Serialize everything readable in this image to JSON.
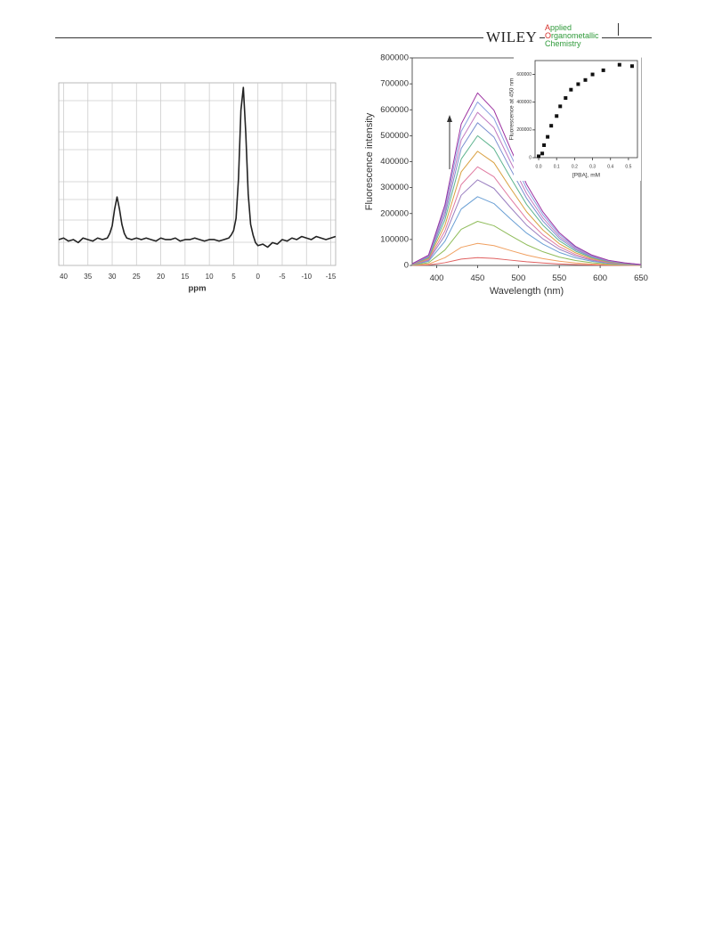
{
  "header": {
    "publisher": "WILEY",
    "journal": [
      "Applied",
      "Organometallic",
      "Chemistry"
    ]
  },
  "chart_data": [
    {
      "type": "line",
      "xlabel": "ppm",
      "color": "#222",
      "grid": true,
      "xlim": [
        41,
        -16
      ],
      "xticks": [
        40,
        35,
        30,
        25,
        20,
        15,
        10,
        5,
        0,
        -5,
        -10,
        -15
      ],
      "ylim": [
        -17,
        103
      ],
      "x": [
        41,
        40,
        39,
        38,
        37,
        36,
        35,
        34,
        33,
        32,
        31,
        30.5,
        30,
        29.5,
        29,
        28.5,
        28,
        27.5,
        27,
        26,
        25,
        24,
        23,
        22,
        21,
        20,
        19,
        18,
        17,
        16,
        15,
        14,
        13,
        12,
        11,
        10,
        9,
        8,
        7,
        6,
        5.5,
        5,
        4.5,
        4,
        3.5,
        3,
        2.5,
        2,
        1.5,
        1,
        0.5,
        0,
        -1,
        -2,
        -3,
        -4,
        -5,
        -6,
        -7,
        -8,
        -9,
        -10,
        -11,
        -12,
        -13,
        -14,
        -15,
        -16
      ],
      "values": [
        0,
        1,
        -1,
        0,
        -2,
        1,
        0,
        -1,
        1,
        0,
        1,
        4,
        9,
        20,
        28,
        20,
        10,
        4,
        1,
        0,
        1,
        0,
        1,
        0,
        -1,
        1,
        0,
        0,
        1,
        -1,
        0,
        0,
        1,
        0,
        -1,
        0,
        0,
        -1,
        0,
        1,
        3,
        6,
        14,
        40,
        85,
        100,
        70,
        30,
        10,
        3,
        -2,
        -4,
        -3,
        -5,
        -2,
        -3,
        0,
        -1,
        1,
        0,
        2,
        1,
        0,
        2,
        1,
        0,
        1,
        2
      ]
    },
    {
      "type": "line",
      "xlabel": "Wavelength (nm)",
      "ylabel": "Fluorescence intensity",
      "grid": false,
      "xlim": [
        370,
        650
      ],
      "xticks": [
        400,
        450,
        500,
        550,
        600,
        650
      ],
      "ylim": [
        0,
        800000
      ],
      "yticks": [
        0,
        100000,
        200000,
        300000,
        400000,
        500000,
        600000,
        700000,
        800000
      ],
      "x": [
        370,
        390,
        410,
        430,
        450,
        470,
        490,
        510,
        530,
        550,
        570,
        590,
        610,
        630,
        650
      ],
      "series": [
        {
          "color": "#e06060",
          "values": [
            300,
            1800,
            10500,
            24600,
            30000,
            27000,
            20400,
            14100,
            9300,
            5700,
            3300,
            1800,
            900,
            450,
            150
          ]
        },
        {
          "color": "#f0a060",
          "values": [
            850,
            5100,
            29750,
            69700,
            85000,
            76500,
            57800,
            39950,
            26350,
            16150,
            9350,
            5100,
            2550,
            1275,
            425
          ]
        },
        {
          "color": "#8fbc5a",
          "values": [
            1700,
            10200,
            59500,
            139400,
            170000,
            153000,
            115600,
            79900,
            52700,
            32300,
            18700,
            10200,
            5100,
            2550,
            850
          ]
        },
        {
          "color": "#6a9fd4",
          "values": [
            2650,
            15900,
            92750,
            217300,
            265000,
            238500,
            180200,
            124550,
            82150,
            50350,
            29150,
            15900,
            7950,
            3975,
            1325
          ]
        },
        {
          "color": "#9a7fc0",
          "values": [
            3300,
            19800,
            115500,
            270600,
            330000,
            297000,
            224400,
            155100,
            102300,
            62700,
            36300,
            19800,
            9900,
            4950,
            1650
          ]
        },
        {
          "color": "#e07aa0",
          "values": [
            3800,
            22800,
            133000,
            311600,
            380000,
            342000,
            258400,
            178600,
            117800,
            72200,
            41800,
            22800,
            11400,
            5700,
            1900
          ]
        },
        {
          "color": "#d9a040",
          "values": [
            4400,
            26400,
            154000,
            360800,
            440000,
            396000,
            299200,
            206800,
            136400,
            83600,
            48400,
            26400,
            13200,
            6600,
            2200
          ]
        },
        {
          "color": "#5fb48f",
          "values": [
            5000,
            30000,
            175000,
            410000,
            500000,
            450000,
            340000,
            235000,
            155000,
            95000,
            55000,
            30000,
            15000,
            7500,
            2500
          ]
        },
        {
          "color": "#7a8fd0",
          "values": [
            5500,
            33000,
            192500,
            451000,
            550000,
            495000,
            374000,
            258500,
            170500,
            104500,
            60500,
            33000,
            16500,
            8250,
            2750
          ]
        },
        {
          "color": "#c07ac0",
          "values": [
            5900,
            35400,
            206500,
            483800,
            590000,
            531000,
            401200,
            277300,
            182900,
            112100,
            64900,
            35400,
            17700,
            8850,
            2950
          ]
        },
        {
          "color": "#8aa0e0",
          "values": [
            6300,
            37800,
            220500,
            516600,
            630000,
            567000,
            428400,
            296100,
            195300,
            119700,
            69300,
            37800,
            18900,
            9450,
            3150
          ]
        },
        {
          "color": "#9b30a0",
          "values": [
            6650,
            39900,
            232750,
            545300,
            665000,
            598500,
            452200,
            312550,
            206150,
            126350,
            73150,
            39900,
            19950,
            9975,
            3325
          ]
        }
      ]
    },
    {
      "type": "scatter",
      "xlabel": "[PBA], mM",
      "ylabel": "Fluorescence at 450 nm",
      "color": "#111",
      "grid": false,
      "xlim": [
        -0.02,
        0.55
      ],
      "xticks": [
        {
          "value": 0,
          "label": "0.0"
        },
        0.1,
        0.2,
        0.3,
        0.4,
        0.5
      ],
      "ylim": [
        0,
        700000
      ],
      "yticks": [
        0,
        200000,
        400000,
        600000
      ],
      "x": [
        0,
        0.02,
        0.03,
        0.05,
        0.07,
        0.1,
        0.12,
        0.15,
        0.18,
        0.22,
        0.26,
        0.3,
        0.36,
        0.45,
        0.52
      ],
      "values": [
        10000,
        30000,
        90000,
        150000,
        230000,
        300000,
        370000,
        430000,
        490000,
        530000,
        560000,
        600000,
        630000,
        670000,
        660000
      ]
    }
  ]
}
